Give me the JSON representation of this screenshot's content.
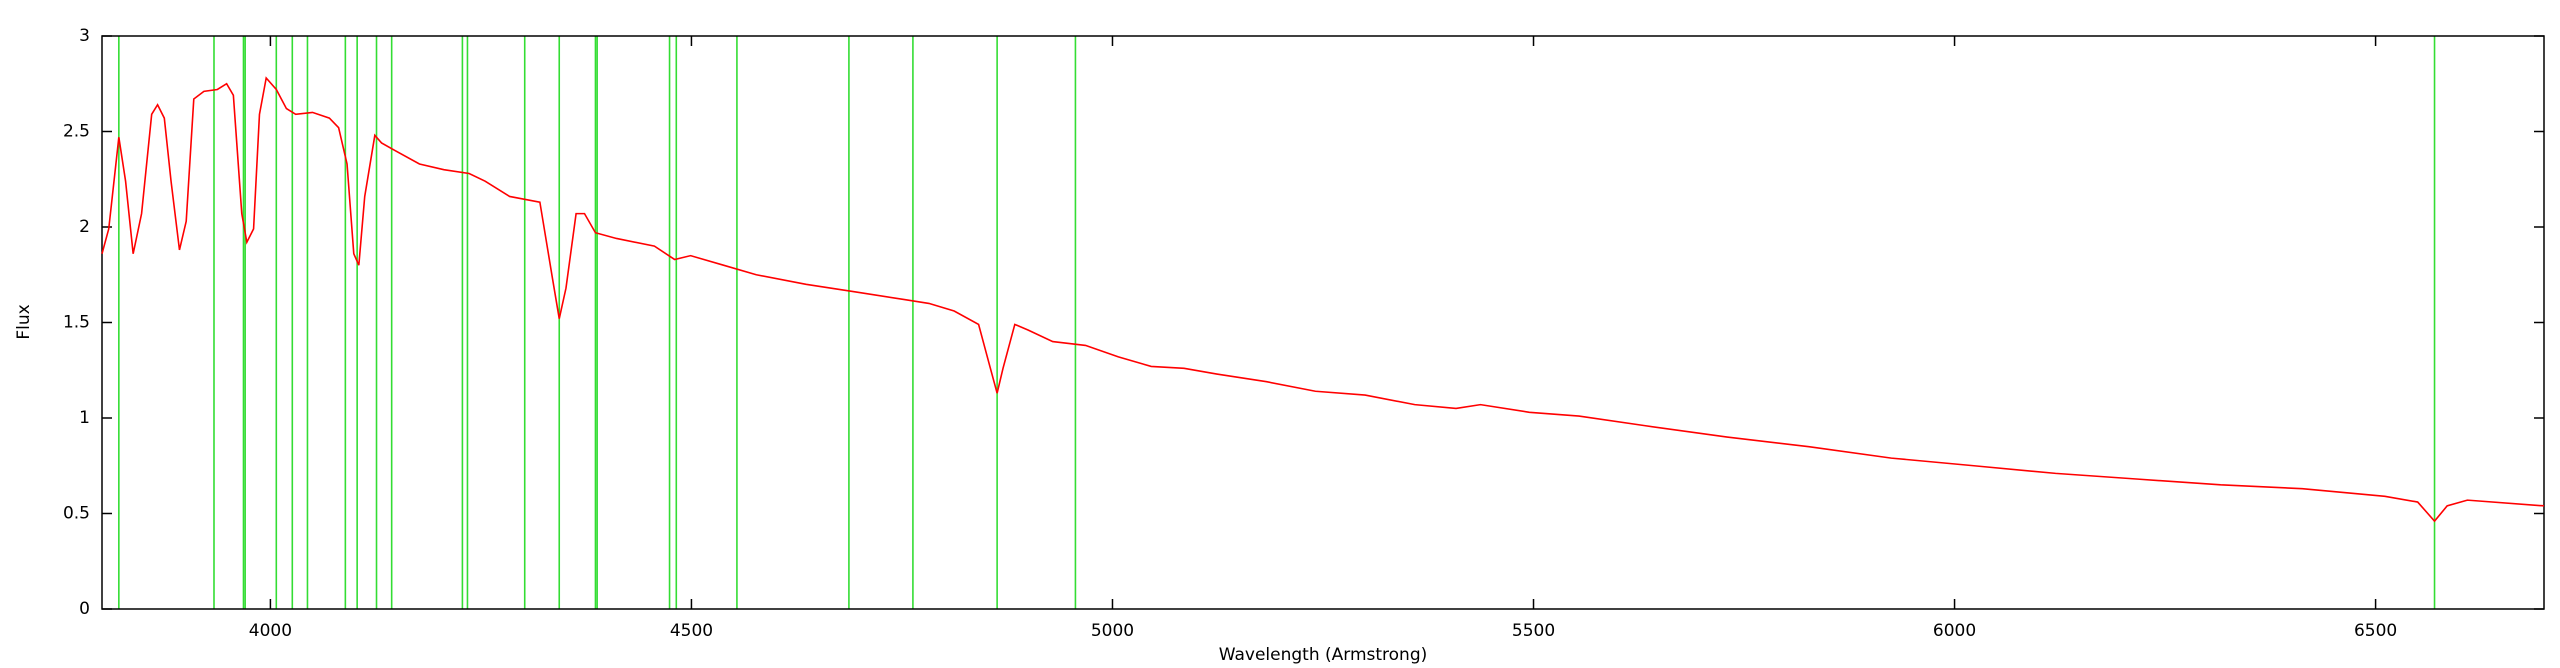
{
  "chart_data": {
    "type": "line",
    "xlabel": "Wavelength (Armstrong)",
    "ylabel": "Flux",
    "xlim": [
      3800,
      6700
    ],
    "ylim": [
      0,
      3
    ],
    "xticks": [
      4000,
      4500,
      5000,
      5500,
      6000,
      6500
    ],
    "yticks": [
      0,
      0.5,
      1,
      1.5,
      2,
      2.5,
      3
    ],
    "markers": [
      3820,
      3933,
      3968,
      3970,
      4007,
      4026,
      4044,
      4089,
      4103,
      4126,
      4144,
      4228,
      4234,
      4302,
      4343,
      4386,
      4388,
      4474,
      4482,
      4554,
      4687,
      4763,
      4863,
      4956,
      6570
    ],
    "marker_color": "#33dd33",
    "series": [
      {
        "color": "#ff0000",
        "x": [
          3800,
          3808,
          3820,
          3828,
          3837,
          3847,
          3859,
          3866,
          3874,
          3882,
          3892,
          3900,
          3909,
          3921,
          3937,
          3948,
          3956,
          3966,
          3972,
          3980,
          3987,
          3995,
          4007,
          4019,
          4030,
          4050,
          4070,
          4081,
          4091,
          4099,
          4105,
          4112,
          4124,
          4132,
          4148,
          4177,
          4206,
          4236,
          4255,
          4284,
          4320,
          4335,
          4343,
          4351,
          4363,
          4373,
          4386,
          4411,
          4456,
          4480,
          4499,
          4538,
          4577,
          4636,
          4695,
          4753,
          4782,
          4812,
          4841,
          4855,
          4863,
          4870,
          4884,
          4900,
          4929,
          4968,
          5007,
          5046,
          5085,
          5124,
          5183,
          5241,
          5300,
          5359,
          5408,
          5437,
          5495,
          5554,
          5632,
          5730,
          5827,
          5925,
          6023,
          6120,
          6218,
          6316,
          6413,
          6511,
          6550,
          6570,
          6585,
          6609,
          6700
        ],
        "values": [
          1.86,
          1.99,
          2.47,
          2.24,
          1.86,
          2.07,
          2.59,
          2.64,
          2.57,
          2.24,
          1.88,
          2.03,
          2.67,
          2.71,
          2.72,
          2.75,
          2.69,
          2.07,
          1.92,
          1.99,
          2.59,
          2.78,
          2.72,
          2.62,
          2.59,
          2.6,
          2.57,
          2.52,
          2.33,
          1.86,
          1.8,
          2.16,
          2.48,
          2.44,
          2.4,
          2.33,
          2.3,
          2.28,
          2.24,
          2.16,
          2.13,
          1.73,
          1.52,
          1.68,
          2.07,
          2.07,
          1.97,
          1.94,
          1.9,
          1.83,
          1.85,
          1.8,
          1.75,
          1.7,
          1.66,
          1.62,
          1.6,
          1.56,
          1.49,
          1.26,
          1.13,
          1.26,
          1.49,
          1.46,
          1.4,
          1.38,
          1.32,
          1.27,
          1.26,
          1.23,
          1.19,
          1.14,
          1.12,
          1.07,
          1.05,
          1.07,
          1.03,
          1.01,
          0.96,
          0.9,
          0.85,
          0.79,
          0.75,
          0.71,
          0.68,
          0.65,
          0.63,
          0.59,
          0.56,
          0.46,
          0.54,
          0.57,
          0.54
        ]
      }
    ]
  }
}
